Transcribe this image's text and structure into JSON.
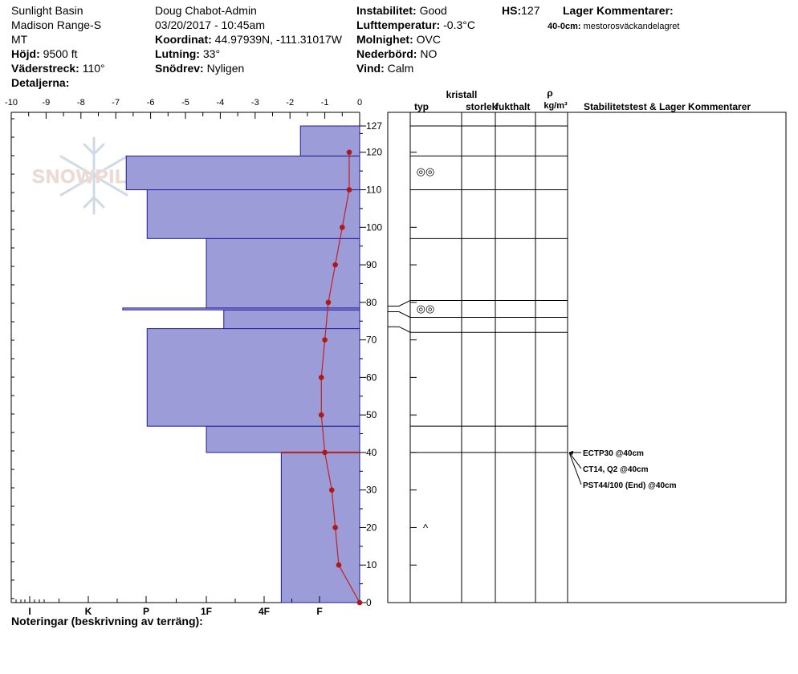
{
  "header": {
    "location": "Sunlight Basin",
    "range": "Madison Range-S",
    "state": "MT",
    "elevation_label": "Höjd:",
    "elevation": "9500 ft",
    "aspect_label": "Väderstreck:",
    "aspect": "110°",
    "details_label": "Detaljerna:",
    "observer": "Doug Chabot-Admin",
    "datetime": "03/20/2017 - 10:45am",
    "coord_label": "Koordinat:",
    "coord": "44.97939N, -111.31017W",
    "slope_label": "Lutning:",
    "slope": "33°",
    "drift_label": "Snödrev:",
    "drift": "Nyligen",
    "instability_label": "Instabilitet:",
    "instability": "Good",
    "airtemp_label": "Lufttemperatur:",
    "airtemp": "-0.3°C",
    "sky_label": "Molnighet:",
    "sky": "OVC",
    "precip_label": "Nederbörd:",
    "precip": "NO",
    "wind_label": "Vind:",
    "wind": "Calm",
    "hs_label": "HS:",
    "hs": "127",
    "layer_comments_label": "Lager Kommentarer:",
    "layer_comment_depth": "40-0cm:",
    "layer_comment_text": "mestorosväckandelagret"
  },
  "footer": {
    "notes_label": "Noteringar (beskrivning av terräng):"
  },
  "columns": {
    "kristall": "kristall",
    "typ": "typ",
    "storlek": "storlek",
    "fukthalt": "fukthalt",
    "rho": "ρ",
    "density_unit": "kg/m³",
    "stability": "Stabilitetstest & Lager Kommentarer"
  },
  "watermark": "SNOWPILOT",
  "chart_data": {
    "type": "snow_profile",
    "temp_axis": {
      "ticks": [
        -10,
        -9,
        -8,
        -7,
        -6,
        -5,
        -4,
        -3,
        -2,
        -1,
        0
      ],
      "range": [
        -10,
        0
      ]
    },
    "hardness_axis": {
      "labels": [
        "I",
        "K",
        "P",
        "1F",
        "4F",
        "F"
      ]
    },
    "depth_axis": {
      "ticks": [
        0,
        10,
        20,
        30,
        40,
        50,
        60,
        70,
        80,
        90,
        100,
        110,
        120,
        127
      ],
      "range": [
        0,
        127
      ]
    },
    "hardness_layers": [
      {
        "bottom": 0,
        "top": 40,
        "hardness": 2.25
      },
      {
        "bottom": 40,
        "top": 47,
        "hardness": 4.4
      },
      {
        "bottom": 47,
        "top": 73,
        "hardness": 6.1
      },
      {
        "bottom": 73,
        "top": 78,
        "hardness": 3.9
      },
      {
        "bottom": 78,
        "top": 78.5,
        "hardness": 6.8
      },
      {
        "bottom": 78.5,
        "top": 97,
        "hardness": 4.4
      },
      {
        "bottom": 97,
        "top": 110,
        "hardness": 6.1
      },
      {
        "bottom": 110,
        "top": 119,
        "hardness": 6.7
      },
      {
        "bottom": 119,
        "top": 127,
        "hardness": 1.7
      }
    ],
    "temperature_profile": [
      {
        "depth": 0,
        "temp": 0
      },
      {
        "depth": 10,
        "temp": -0.6
      },
      {
        "depth": 20,
        "temp": -0.7
      },
      {
        "depth": 30,
        "temp": -0.8
      },
      {
        "depth": 40,
        "temp": -1.0
      },
      {
        "depth": 50,
        "temp": -1.1
      },
      {
        "depth": 60,
        "temp": -1.1
      },
      {
        "depth": 70,
        "temp": -1.0
      },
      {
        "depth": 80,
        "temp": -0.9
      },
      {
        "depth": 90,
        "temp": -0.7
      },
      {
        "depth": 100,
        "temp": -0.5
      },
      {
        "depth": 110,
        "temp": -0.3
      },
      {
        "depth": 120,
        "temp": -0.3
      }
    ],
    "layer_boundaries": [
      40,
      47,
      72,
      76,
      80.5,
      97,
      110,
      119,
      127
    ],
    "boundary_connectors": [
      {
        "depth": 80.5,
        "to": 79
      },
      {
        "depth": 76,
        "to": 77.5
      },
      {
        "depth": 72,
        "to": 73.5
      }
    ],
    "weak_layer_depth": 40,
    "crystal_symbols": [
      {
        "depth": 115,
        "symbol": "◎◎"
      },
      {
        "depth": 78.5,
        "symbol": "◎◎"
      },
      {
        "depth": 20,
        "symbol": "^"
      }
    ],
    "stability_tests": [
      {
        "label": "ECTP30 @40cm"
      },
      {
        "label": "CT14, Q2 @40cm"
      },
      {
        "label": "PST44/100 (End) @40cm"
      }
    ]
  }
}
